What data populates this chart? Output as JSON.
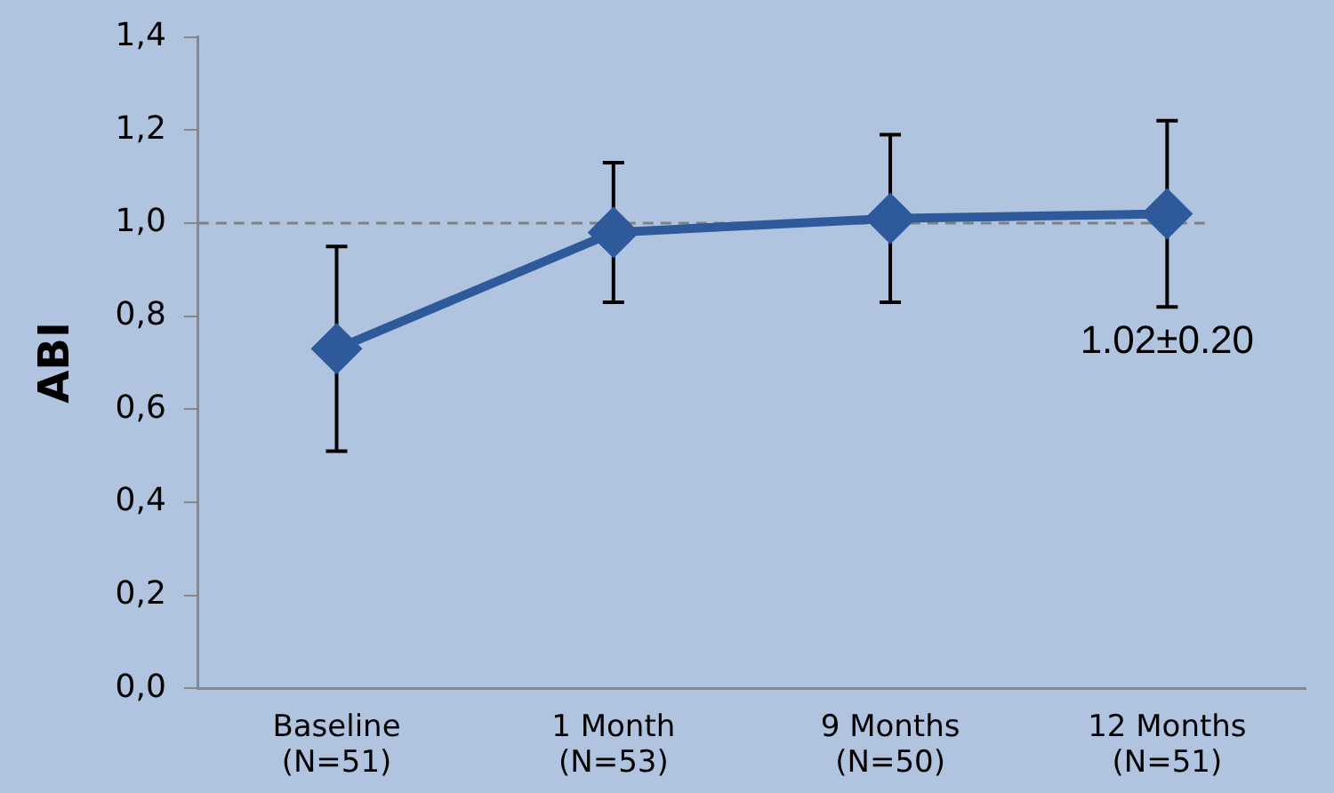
{
  "chart_data": {
    "type": "line",
    "ylabel": "ABI",
    "categories": [
      "Baseline\n(N=51)",
      "1 Month\n(N=53)",
      "9 Months\n(N=50)",
      "12 Months\n(N=51)"
    ],
    "series": [
      {
        "color": "#2e5a9c",
        "values": [
          0.73,
          0.98,
          1.01,
          1.02
        ],
        "errors": [
          [
            0.51,
            0.95
          ],
          [
            0.83,
            1.13
          ],
          [
            0.83,
            1.19
          ],
          [
            0.82,
            1.22
          ]
        ]
      }
    ],
    "ylim": [
      0,
      1.4
    ],
    "yticks": [
      {
        "value": 0,
        "label": "0,0"
      },
      {
        "value": 0.2,
        "label": "0,2"
      },
      {
        "value": 0.4,
        "label": "0,4"
      },
      {
        "value": 0.6,
        "label": "0,6"
      },
      {
        "value": 0.8,
        "label": "0,8"
      },
      {
        "value": 1,
        "label": "1,0"
      },
      {
        "value": 1.2,
        "label": "1,2"
      },
      {
        "value": 1.4,
        "label": "1,4"
      }
    ],
    "ref_lines": [
      {
        "axis": "y",
        "value": 1,
        "color": "#808080",
        "line_style": "dashed"
      }
    ],
    "annotations": [
      {
        "text": "1.02±0.20",
        "x": "12 Months\n(N=51)",
        "y": 1.02
      }
    ],
    "marker": "diamond",
    "grid": false,
    "legend": false
  }
}
